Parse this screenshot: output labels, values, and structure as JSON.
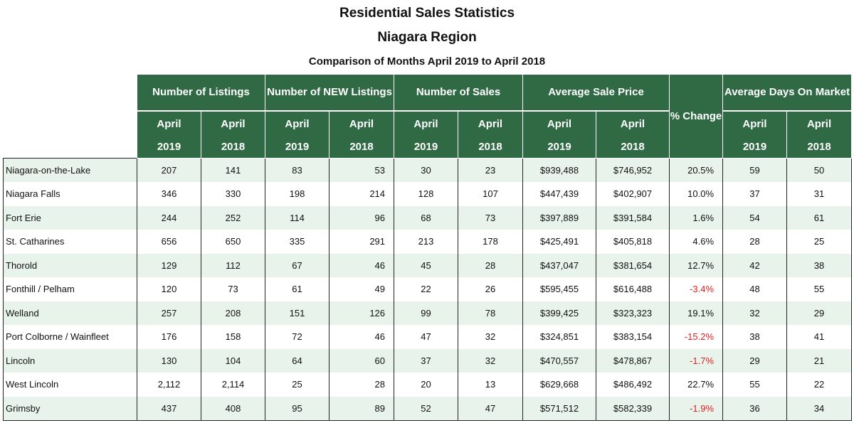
{
  "title": "Residential Sales Statistics",
  "region": "Niagara Region",
  "subtitle": "Comparison of Months April 2019 to April 2018",
  "headers": {
    "listings": "Number of Listings",
    "new_listings": "Number of NEW Listings",
    "sales": "Number of Sales",
    "avg_price": "Average Sale Price",
    "pct_change": "% Change",
    "days_on_market": "Average Days On Market",
    "month": "April",
    "year_a": "2019",
    "year_b": "2018"
  },
  "rows": [
    {
      "name": "Niagara-on-the-Lake",
      "listings_2019": "207",
      "listings_2018": "141",
      "new_2019": "83",
      "new_2018": "53",
      "sales_2019": "30",
      "sales_2018": "23",
      "price_2019": "$939,488",
      "price_2018": "$746,952",
      "pct": "20.5%",
      "dom_2019": "59",
      "dom_2018": "50",
      "negative": false
    },
    {
      "name": "Niagara Falls",
      "listings_2019": "346",
      "listings_2018": "330",
      "new_2019": "198",
      "new_2018": "214",
      "sales_2019": "128",
      "sales_2018": "107",
      "price_2019": "$447,439",
      "price_2018": "$402,907",
      "pct": "10.0%",
      "dom_2019": "37",
      "dom_2018": "31",
      "negative": false
    },
    {
      "name": "Fort Erie",
      "listings_2019": "244",
      "listings_2018": "252",
      "new_2019": "114",
      "new_2018": "96",
      "sales_2019": "68",
      "sales_2018": "73",
      "price_2019": "$397,889",
      "price_2018": "$391,584",
      "pct": "1.6%",
      "dom_2019": "54",
      "dom_2018": "61",
      "negative": false
    },
    {
      "name": "St. Catharines",
      "listings_2019": "656",
      "listings_2018": "650",
      "new_2019": "335",
      "new_2018": "291",
      "sales_2019": "213",
      "sales_2018": "178",
      "price_2019": "$425,491",
      "price_2018": "$405,818",
      "pct": "4.6%",
      "dom_2019": "28",
      "dom_2018": "25",
      "negative": false
    },
    {
      "name": "Thorold",
      "listings_2019": "129",
      "listings_2018": "112",
      "new_2019": "67",
      "new_2018": "46",
      "sales_2019": "45",
      "sales_2018": "28",
      "price_2019": "$437,047",
      "price_2018": "$381,654",
      "pct": "12.7%",
      "dom_2019": "42",
      "dom_2018": "38",
      "negative": false
    },
    {
      "name": "Fonthill / Pelham",
      "listings_2019": "120",
      "listings_2018": "73",
      "new_2019": "61",
      "new_2018": "49",
      "sales_2019": "22",
      "sales_2018": "26",
      "price_2019": "$595,455",
      "price_2018": "$616,488",
      "pct": "-3.4%",
      "dom_2019": "48",
      "dom_2018": "55",
      "negative": true
    },
    {
      "name": "Welland",
      "listings_2019": "257",
      "listings_2018": "208",
      "new_2019": "151",
      "new_2018": "126",
      "sales_2019": "99",
      "sales_2018": "78",
      "price_2019": "$399,425",
      "price_2018": "$323,323",
      "pct": "19.1%",
      "dom_2019": "32",
      "dom_2018": "29",
      "negative": false
    },
    {
      "name": "Port Colborne / Wainfleet",
      "listings_2019": "176",
      "listings_2018": "158",
      "new_2019": "72",
      "new_2018": "46",
      "sales_2019": "47",
      "sales_2018": "32",
      "price_2019": "$324,851",
      "price_2018": "$383,154",
      "pct": "-15.2%",
      "dom_2019": "38",
      "dom_2018": "41",
      "negative": true
    },
    {
      "name": "Lincoln",
      "listings_2019": "130",
      "listings_2018": "104",
      "new_2019": "64",
      "new_2018": "60",
      "sales_2019": "37",
      "sales_2018": "32",
      "price_2019": "$470,557",
      "price_2018": "$478,867",
      "pct": "-1.7%",
      "dom_2019": "29",
      "dom_2018": "21",
      "negative": true
    },
    {
      "name": "West Lincoln",
      "listings_2019": "2,112",
      "listings_2018": "2,114",
      "new_2019": "25",
      "new_2018": "28",
      "sales_2019": "20",
      "sales_2018": "13",
      "price_2019": "$629,668",
      "price_2018": "$486,492",
      "pct": "22.7%",
      "dom_2019": "55",
      "dom_2018": "22",
      "negative": false
    },
    {
      "name": "Grimsby",
      "listings_2019": "437",
      "listings_2018": "408",
      "new_2019": "95",
      "new_2018": "89",
      "sales_2019": "52",
      "sales_2018": "47",
      "price_2019": "$571,512",
      "price_2018": "$582,339",
      "pct": "-1.9%",
      "dom_2019": "36",
      "dom_2018": "34",
      "negative": true
    }
  ],
  "colors": {
    "header_bg": "#2f6a45",
    "row_alt_bg": "#e8f3eb",
    "negative_text": "#e02020"
  }
}
